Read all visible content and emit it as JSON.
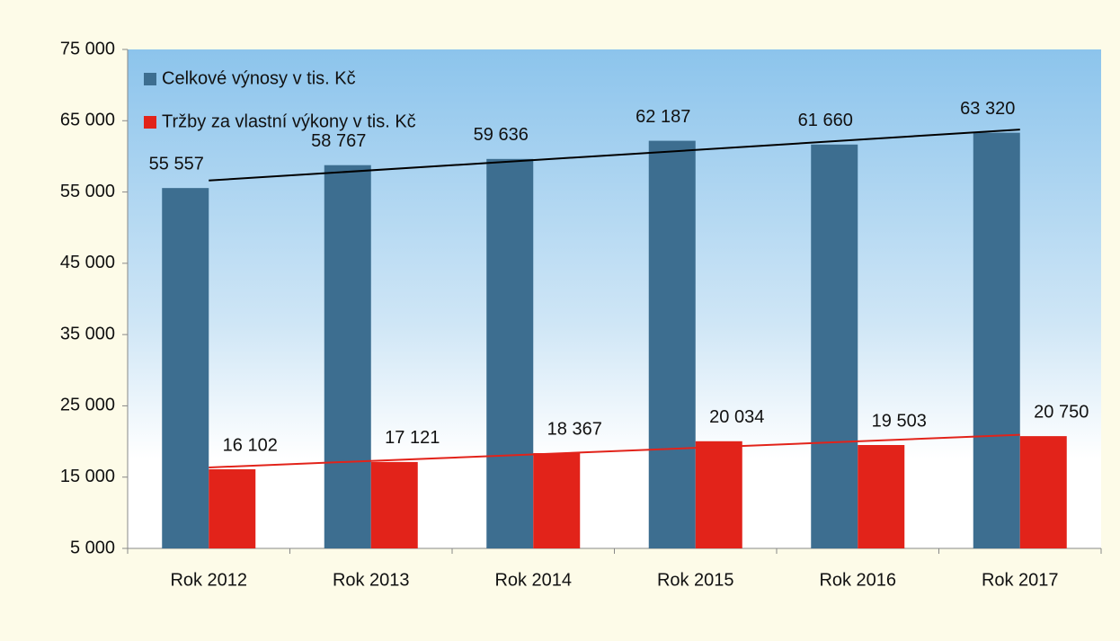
{
  "chart_data": {
    "type": "bar",
    "categories": [
      "Rok 2012",
      "Rok 2013",
      "Rok 2014",
      "Rok 2015",
      "Rok 2016",
      "Rok 2017"
    ],
    "series": [
      {
        "name": "Celkové výnosy v tis. Kč",
        "color": "#3d6e90",
        "trendline_color": "#000000",
        "values": [
          55557,
          58767,
          59636,
          62187,
          61660,
          63320
        ],
        "value_labels": [
          "55 557",
          "58 767",
          "59 636",
          "62 187",
          "61 660",
          "63 320"
        ]
      },
      {
        "name": "Tržby za vlastní výkony v tis. Kč",
        "color": "#e2231a",
        "trendline_color": "#e2231a",
        "values": [
          16102,
          17121,
          18367,
          20034,
          19503,
          20750
        ],
        "value_labels": [
          "16 102",
          "17 121",
          "18 367",
          "20 034",
          "19 503",
          "20 750"
        ]
      }
    ],
    "trendline": true,
    "ylim": [
      5000,
      75000
    ],
    "yticks": [
      {
        "value": 5000,
        "label": "5 000"
      },
      {
        "value": 15000,
        "label": "15 000"
      },
      {
        "value": 25000,
        "label": "25 000"
      },
      {
        "value": 35000,
        "label": "35 000"
      },
      {
        "value": 45000,
        "label": "45 000"
      },
      {
        "value": 55000,
        "label": "55 000"
      },
      {
        "value": 65000,
        "label": "65 000"
      },
      {
        "value": 75000,
        "label": "75 000"
      }
    ],
    "legend": "top-left"
  }
}
